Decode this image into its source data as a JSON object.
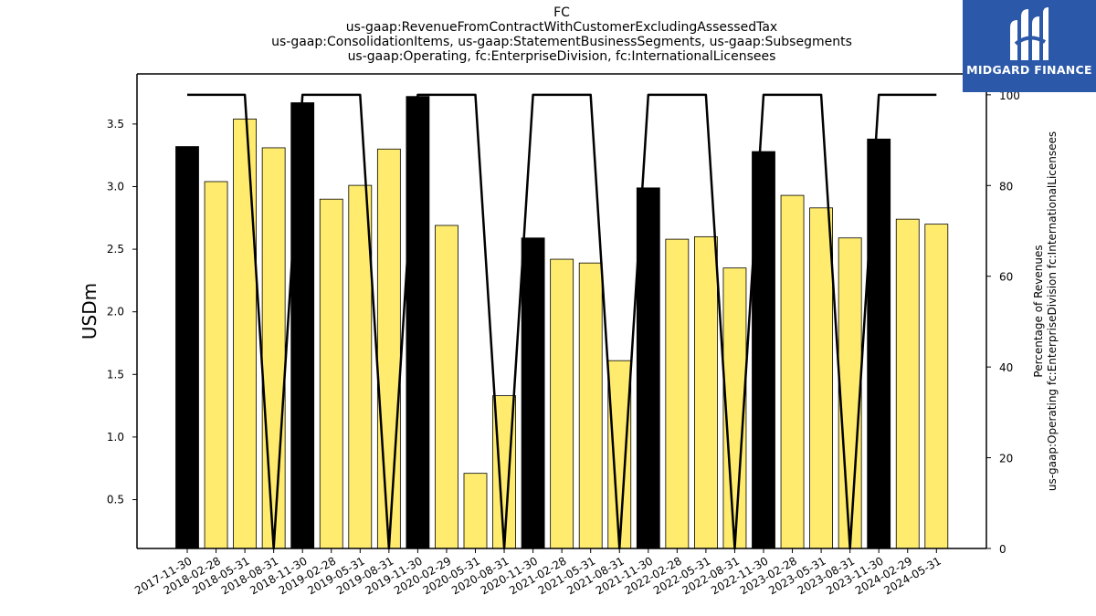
{
  "chart_data": {
    "type": "bar",
    "title_lines": [
      "FC",
      "us-gaap:RevenueFromContractWithCustomerExcludingAssessedTax",
      "us-gaap:ConsolidationItems, us-gaap:StatementBusinessSegments, us-gaap:Subsegments",
      "us-gaap:Operating, fc:EnterpriseDivision, fc:InternationalLicensees"
    ],
    "categories": [
      "2017-11-30",
      "2018-02-28",
      "2018-05-31",
      "2018-08-31",
      "2018-11-30",
      "2019-02-28",
      "2019-05-31",
      "2019-08-31",
      "2019-11-30",
      "2020-02-29",
      "2020-05-31",
      "2020-08-31",
      "2020-11-30",
      "2021-02-28",
      "2021-05-31",
      "2021-08-31",
      "2021-11-30",
      "2022-02-28",
      "2022-05-31",
      "2022-08-31",
      "2022-11-30",
      "2023-02-28",
      "2023-05-31",
      "2023-08-31",
      "2023-11-30",
      "2024-02-29",
      "2024-05-31"
    ],
    "series": [
      {
        "axis": "left",
        "kind": "bar",
        "values": [
          3.32,
          3.04,
          3.54,
          3.31,
          3.67,
          2.9,
          3.01,
          3.3,
          3.72,
          2.69,
          0.71,
          1.33,
          2.59,
          2.42,
          2.39,
          1.61,
          2.99,
          2.58,
          2.6,
          2.35,
          3.28,
          2.93,
          2.83,
          2.59,
          3.38,
          2.74,
          2.7
        ],
        "colors": [
          "#000000",
          "#ffec6e",
          "#ffec6e",
          "#ffec6e",
          "#000000",
          "#ffec6e",
          "#ffec6e",
          "#ffec6e",
          "#000000",
          "#ffec6e",
          "#ffec6e",
          "#ffec6e",
          "#000000",
          "#ffec6e",
          "#ffec6e",
          "#ffec6e",
          "#000000",
          "#ffec6e",
          "#ffec6e",
          "#ffec6e",
          "#000000",
          "#ffec6e",
          "#ffec6e",
          "#ffec6e",
          "#000000",
          "#ffec6e",
          "#ffec6e"
        ]
      },
      {
        "axis": "right",
        "kind": "line",
        "color": "#000000",
        "values": [
          100,
          100,
          100,
          0,
          100,
          100,
          100,
          0,
          100,
          100,
          100,
          0,
          100,
          100,
          100,
          0,
          100,
          100,
          100,
          0,
          100,
          100,
          100,
          0,
          100,
          100,
          100
        ]
      }
    ],
    "ylabel": "USDm",
    "ylabel_right_lines": [
      "Percentage of Revenues",
      "us-gaap:Operating fc:EnterpriseDivision fc:InternationalLicensees"
    ],
    "ylim": [
      0.11,
      3.9
    ],
    "yticks": [
      "0.5",
      "1.0",
      "1.5",
      "2.0",
      "2.5",
      "3.0",
      "3.5"
    ],
    "ylim_right": [
      0,
      104.6
    ],
    "yticks_right": [
      "0",
      "20",
      "40",
      "60",
      "80",
      "100"
    ],
    "grid": false,
    "legend": "none"
  },
  "logo": {
    "text": "MIDGARD FINANCE",
    "icon": "midgard-logo-icon",
    "background": "#2b58a8"
  }
}
